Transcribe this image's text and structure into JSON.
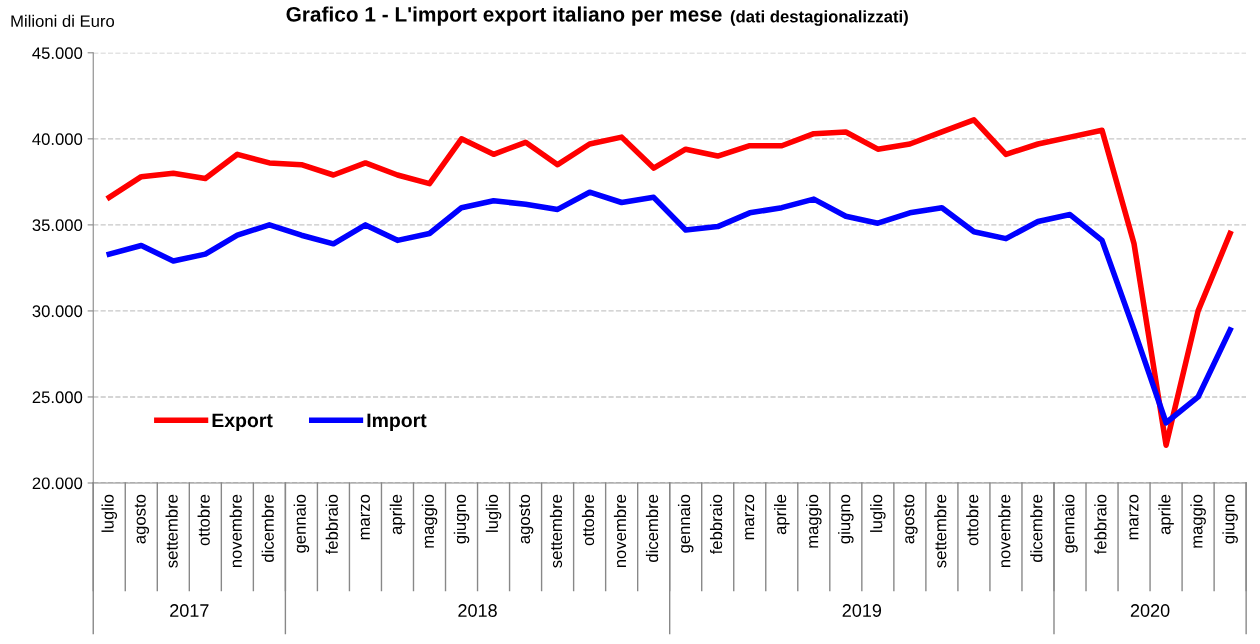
{
  "chart_data": {
    "type": "line",
    "title": "Grafico 1 - L'import export italiano per mese",
    "subtitle": "(dati destagionalizzati)",
    "ylabel": "Milioni di Euro",
    "categories": [
      "luglio",
      "agosto",
      "settembre",
      "ottobre",
      "novembre",
      "dicembre",
      "gennaio",
      "febbraio",
      "marzo",
      "aprile",
      "maggio",
      "giugno",
      "luglio",
      "agosto",
      "settembre",
      "ottobre",
      "novembre",
      "dicembre",
      "gennaio",
      "febbraio",
      "marzo",
      "aprile",
      "maggio",
      "giugno",
      "luglio",
      "agosto",
      "settembre",
      "ottobre",
      "novembre",
      "dicembre",
      "gennaio",
      "febbraio",
      "marzo",
      "aprile",
      "maggio",
      "giugno"
    ],
    "series": [
      {
        "name": "Export",
        "color": "#ff0000",
        "values": [
          36600,
          37800,
          38000,
          37700,
          39100,
          38600,
          38500,
          37900,
          38600,
          37900,
          37400,
          40000,
          39100,
          39800,
          38500,
          39700,
          40100,
          38300,
          39400,
          39000,
          39600,
          39600,
          40300,
          40400,
          39400,
          39700,
          40400,
          41100,
          39100,
          39700,
          40100,
          40500,
          33900,
          22200,
          30000,
          34500
        ]
      },
      {
        "name": "Import",
        "color": "#0000ff",
        "values": [
          33300,
          33800,
          32900,
          33300,
          34400,
          35000,
          34400,
          33900,
          35000,
          34100,
          34500,
          36000,
          36400,
          36200,
          35900,
          36900,
          36300,
          36600,
          34700,
          34900,
          35700,
          36000,
          36500,
          35500,
          35100,
          35700,
          36000,
          34600,
          34200,
          35200,
          35600,
          34100,
          28900,
          23500,
          25000,
          28900
        ]
      }
    ],
    "ylim": [
      20000,
      45000
    ],
    "yticks": [
      {
        "value": 20000,
        "label": "20.000"
      },
      {
        "value": 25000,
        "label": "25.000"
      },
      {
        "value": 30000,
        "label": "30.000"
      },
      {
        "value": 35000,
        "label": "35.000"
      },
      {
        "value": 40000,
        "label": "40.000"
      },
      {
        "value": 45000,
        "label": "45.000"
      }
    ],
    "grid": "y",
    "legend": "bottom left",
    "marker": "none",
    "line_style": "solid",
    "annotations": [
      "2017",
      "2018",
      "2019",
      "2020"
    ]
  }
}
